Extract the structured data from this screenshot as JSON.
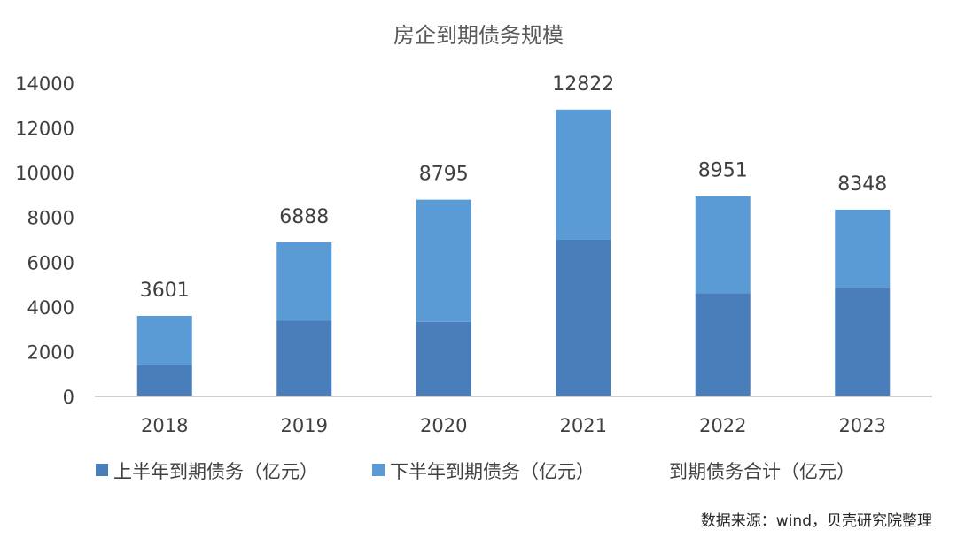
{
  "chart_data": {
    "type": "bar",
    "stacked": true,
    "title": "房企到期债务规模",
    "categories": [
      "2018",
      "2019",
      "2020",
      "2021",
      "2022",
      "2023"
    ],
    "series": [
      {
        "name": "上半年到期债务（亿元）",
        "color": "#4a7ebb",
        "values": [
          1400,
          3380,
          3330,
          7000,
          4620,
          4850
        ]
      },
      {
        "name": "下半年到期债务（亿元）",
        "color": "#5b9bd5",
        "values": [
          2201,
          3508,
          5465,
          5822,
          4331,
          3498
        ]
      }
    ],
    "total_series": {
      "name": "到期债务合计（亿元）",
      "values": [
        3601,
        6888,
        8795,
        12822,
        8951,
        8348
      ]
    },
    "yticks": [
      "0",
      "2000",
      "4000",
      "6000",
      "8000",
      "10000",
      "12000",
      "14000"
    ],
    "ylim": [
      0,
      14000
    ],
    "grid": false,
    "legend_position": "bottom"
  },
  "source": "数据来源：wind，贝壳研究院整理"
}
